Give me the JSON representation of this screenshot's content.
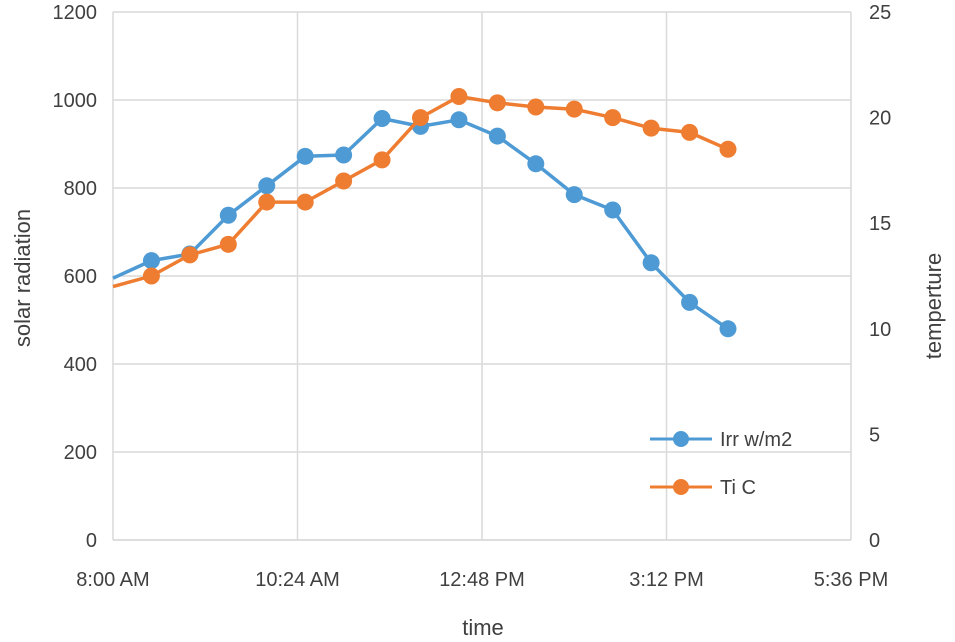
{
  "chart_data": {
    "type": "line",
    "xlabel": "time",
    "ylabel_left": "solar radiation",
    "ylabel_right": "temperture",
    "x_ticks": [
      "8:00 AM",
      "10:24 AM",
      "12:48 PM",
      "3:12 PM",
      "5:36 PM"
    ],
    "x_tick_hours": [
      8.0,
      10.4,
      12.8,
      15.2,
      17.6
    ],
    "xlim": [
      8.0,
      17.6
    ],
    "y_left_ticks": [
      "0",
      "200",
      "400",
      "600",
      "800",
      "1000",
      "1200"
    ],
    "y_left_lim": [
      0,
      1200
    ],
    "y_right_ticks": [
      "0",
      "5",
      "10",
      "15",
      "20",
      "25"
    ],
    "y_right_lim": [
      0,
      25
    ],
    "grid": true,
    "legend_position": "bottom-right",
    "series": [
      {
        "name": "Irr w/m2",
        "axis": "left",
        "color": "#4e9ad4",
        "x_hours": [
          8.0,
          8.5,
          9.0,
          9.5,
          10.0,
          10.5,
          11.0,
          11.5,
          12.0,
          12.5,
          13.0,
          13.5,
          14.0,
          14.5,
          15.0,
          15.5,
          16.0
        ],
        "values": [
          595,
          635,
          650,
          738,
          805,
          872,
          875,
          958,
          940,
          955,
          918,
          855,
          785,
          750,
          630,
          540,
          480
        ],
        "markers": [
          false,
          true,
          true,
          true,
          true,
          true,
          true,
          true,
          true,
          true,
          true,
          true,
          true,
          true,
          true,
          true,
          true
        ]
      },
      {
        "name": "Ti C",
        "axis": "right",
        "color": "#ef7d31",
        "x_hours": [
          8.0,
          8.5,
          9.0,
          9.5,
          10.0,
          10.5,
          11.0,
          11.5,
          12.0,
          12.5,
          13.0,
          13.5,
          14.0,
          14.5,
          15.0,
          15.5,
          16.0
        ],
        "values": [
          12.0,
          12.5,
          13.5,
          14.0,
          16.0,
          16.0,
          17.0,
          18.0,
          20.0,
          21.0,
          20.7,
          20.5,
          20.4,
          20.0,
          19.5,
          19.3,
          18.5
        ],
        "markers": [
          false,
          true,
          true,
          true,
          true,
          true,
          true,
          true,
          true,
          true,
          true,
          true,
          true,
          true,
          true,
          true,
          true
        ]
      }
    ]
  }
}
